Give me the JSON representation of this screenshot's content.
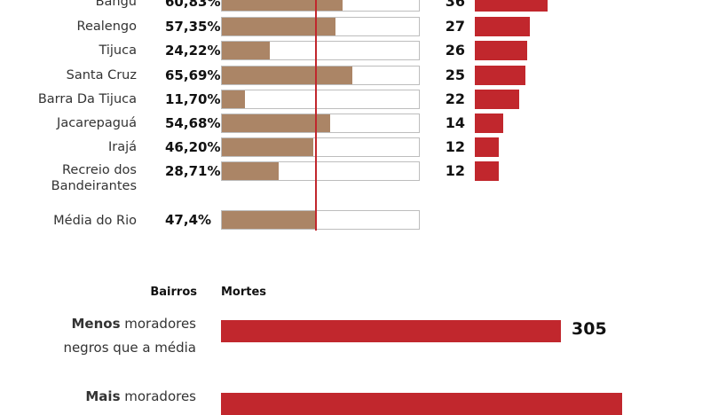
{
  "chart_data": [
    {
      "type": "bar",
      "orientation": "horizontal",
      "categories": [
        "Bangu",
        "Realengo",
        "Tijuca",
        "Santa Cruz",
        "Barra Da Tijuca",
        "Jacarepaguá",
        "Irajá",
        "Recreio dos Bandeirantes"
      ],
      "percent_labels": [
        "60,83%",
        "57,35%",
        "24,22%",
        "65,69%",
        "11,70%",
        "54,68%",
        "46,20%",
        "28,71%"
      ],
      "percent_values": [
        60.83,
        57.35,
        24.22,
        65.69,
        11.7,
        54.68,
        46.2,
        28.71
      ],
      "death_values": [
        36,
        27,
        26,
        25,
        22,
        14,
        12,
        12
      ],
      "xlim_percent": [
        0,
        100
      ],
      "average": {
        "label": "Média do Rio",
        "value_label": "47,4%",
        "value": 47.4
      },
      "colors": {
        "percent_fill": "#ab8566",
        "deaths": "#c1272d",
        "average_line": "#c1272d"
      }
    },
    {
      "type": "bar",
      "orientation": "horizontal",
      "header_left": "Bairros",
      "header_right": "Mortes",
      "groups": [
        {
          "bold": "Menos",
          "rest": " moradores",
          "line2": "negros que a média",
          "value": 305,
          "value_label": "305"
        },
        {
          "bold": "Mais",
          "rest": " moradores",
          "value": 360
        }
      ],
      "color": "#c1272d"
    }
  ]
}
